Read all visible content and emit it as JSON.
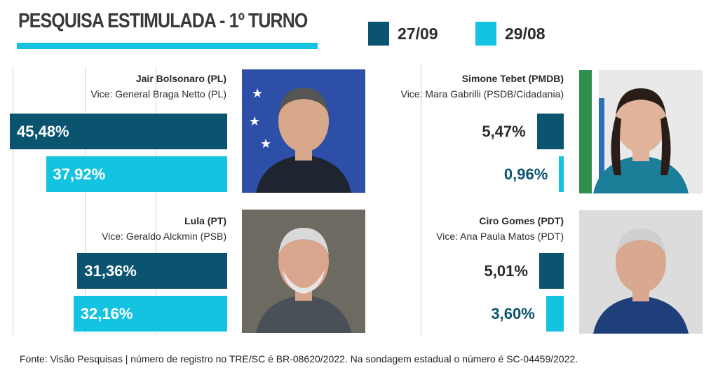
{
  "title": "PESQUISA ESTIMULADA - 1º TURNO",
  "legend": [
    {
      "label": "27/09",
      "color": "#0b5470"
    },
    {
      "label": "29/08",
      "color": "#14c2e2"
    }
  ],
  "chart_data": {
    "type": "bar",
    "title": "PESQUISA ESTIMULADA - 1º TURNO",
    "series": [
      {
        "name": "27/09",
        "color": "#0b5470"
      },
      {
        "name": "29/08",
        "color": "#14c2e2"
      }
    ],
    "candidates": [
      {
        "name": "Jair Bolsonaro (PL)",
        "vice": "Vice: General Braga Netto (PL)",
        "values": [
          45.48,
          37.92
        ],
        "labels": [
          "45,48%",
          "37,92%"
        ],
        "photo": "candidate-photo-bolsonaro"
      },
      {
        "name": "Lula (PT)",
        "vice": "Vice: Geraldo Alckmin (PSB)",
        "values": [
          31.36,
          32.16
        ],
        "labels": [
          "31,36%",
          "32,16%"
        ],
        "photo": "candidate-photo-lula"
      },
      {
        "name": "Simone Tebet (PMDB)",
        "vice": "Vice: Mara Gabrilli (PSDB/Cidadania)",
        "values": [
          5.47,
          0.96
        ],
        "labels": [
          "5,47%",
          "0,96%"
        ],
        "photo": "candidate-photo-tebet"
      },
      {
        "name": "Ciro Gomes (PDT)",
        "vice": "Vice: Ana Paula Matos (PDT)",
        "values": [
          5.01,
          3.6
        ],
        "labels": [
          "5,01%",
          "3,60%"
        ],
        "photo": "candidate-photo-ciro"
      }
    ],
    "grid": true
  },
  "footer": "Fonte: Visão Pesquisas  | número de registro no TRE/SC é BR-08620/2022. Na sondagem estadual o número é SC-04459/2022."
}
